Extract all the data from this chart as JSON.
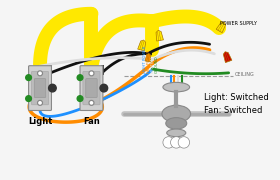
{
  "bg_color": "#f5f5f5",
  "light_label": "Light",
  "fan_label": "Fan",
  "power_label": "POWER SUPPLY",
  "ceiling_label": "CEILING",
  "status_text": "Light: Switched\nFan: Switched",
  "wire_yellow": "#FFE800",
  "wire_orange": "#FF8C00",
  "wire_blue": "#1E90FF",
  "wire_white": "#DDDDDD",
  "wire_black": "#111111",
  "wire_green": "#228B22",
  "wire_red": "#CC0000",
  "wire_gray": "#999999",
  "switch_fill": "#CCCCCC",
  "switch_border": "#888888"
}
